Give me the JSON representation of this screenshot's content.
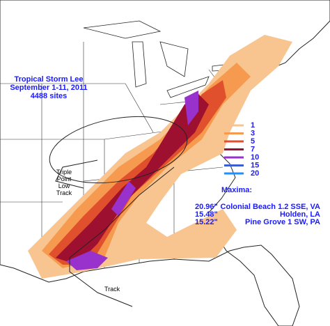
{
  "header": {
    "lines": [
      "Tropical Storm Lee",
      "September 1-11, 2011",
      "4488 sites"
    ]
  },
  "legend": {
    "items": [
      {
        "value": 1,
        "color": "#f8c48f"
      },
      {
        "value": 3,
        "color": "#f59a4f"
      },
      {
        "value": 5,
        "color": "#e0502c"
      },
      {
        "value": 7,
        "color": "#9e1030"
      },
      {
        "value": 10,
        "color": "#9932cc"
      },
      {
        "value": 15,
        "color": "#3a5fd0"
      },
      {
        "value": 20,
        "color": "#1e90ff"
      }
    ]
  },
  "maxima": {
    "title": "Maxima:",
    "rows": [
      {
        "amount": "20.96\"",
        "location": "Colonial Beach 1.2 SSE, VA"
      },
      {
        "amount": "15.48\"",
        "location": "Holden, LA"
      },
      {
        "amount": "15.22\"",
        "location": "Pine Grove 1 SW, PA"
      }
    ]
  },
  "labels": {
    "triple_point": [
      "Triple",
      "Point",
      "Low",
      "Track"
    ],
    "track": "Track"
  }
}
